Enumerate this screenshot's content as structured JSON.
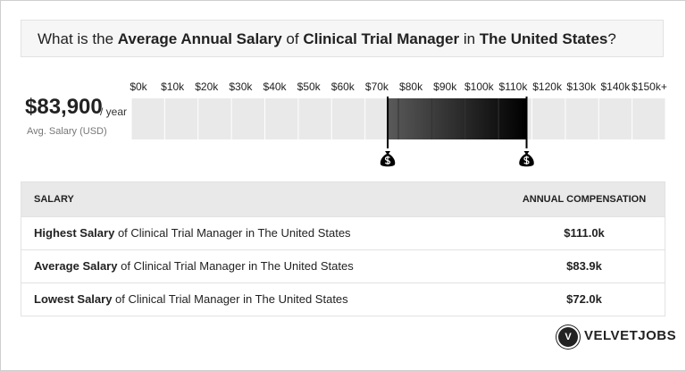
{
  "header": {
    "title": [
      {
        "text": "What is the ",
        "bold": false
      },
      {
        "text": "Average Annual Salary",
        "bold": true
      },
      {
        "text": " of ",
        "bold": false
      },
      {
        "text": "Clinical Trial Manager",
        "bold": true
      },
      {
        "text": " in ",
        "bold": false
      },
      {
        "text": "The United States",
        "bold": true
      },
      {
        "text": "?",
        "bold": false
      }
    ]
  },
  "salary": {
    "value": 83900,
    "label": "$83,900",
    "unit": "/ year",
    "caption": "Avg. Salary (USD)"
  },
  "scale": {
    "xlim": [
      0,
      150000
    ],
    "ticks": [
      {
        "value": 0,
        "label": "$0k"
      },
      {
        "value": 10000,
        "label": "$10k"
      },
      {
        "value": 20000,
        "label": "$20k"
      },
      {
        "value": 30000,
        "label": "$30k"
      },
      {
        "value": 40000,
        "label": "$40k"
      },
      {
        "value": 50000,
        "label": "$50k"
      },
      {
        "value": 60000,
        "label": "$60k"
      },
      {
        "value": 70000,
        "label": "$70k"
      },
      {
        "value": 80000,
        "label": "$80k"
      },
      {
        "value": 90000,
        "label": "$90k"
      },
      {
        "value": 100000,
        "label": "$100k"
      },
      {
        "value": 110000,
        "label": "$110k"
      },
      {
        "value": 120000,
        "label": "$120k"
      },
      {
        "value": 130000,
        "label": "$130k"
      },
      {
        "value": 140000,
        "label": "$140k"
      },
      {
        "value": 150000,
        "label": "$150k+"
      }
    ]
  },
  "range": {
    "low": 72000,
    "high": 111000
  },
  "table": {
    "columns": [
      "SALARY",
      "ANNUAL COMPENSATION"
    ],
    "rows": [
      [
        {
          "bold": "Highest Salary",
          "rest": " of Clinical Trial Manager in The United States"
        },
        {
          "value": 111000,
          "label": "$111.0k"
        }
      ],
      [
        {
          "bold": "Average Salary",
          "rest": " of Clinical Trial Manager in The United States"
        },
        {
          "value": 83900,
          "label": "$83.9k"
        }
      ],
      [
        {
          "bold": "Lowest Salary",
          "rest": " of Clinical Trial Manager in The United States"
        },
        {
          "value": 72000,
          "label": "$72.0k"
        }
      ]
    ]
  },
  "brand": {
    "logo": "V",
    "name": "VELVETJOBS"
  }
}
